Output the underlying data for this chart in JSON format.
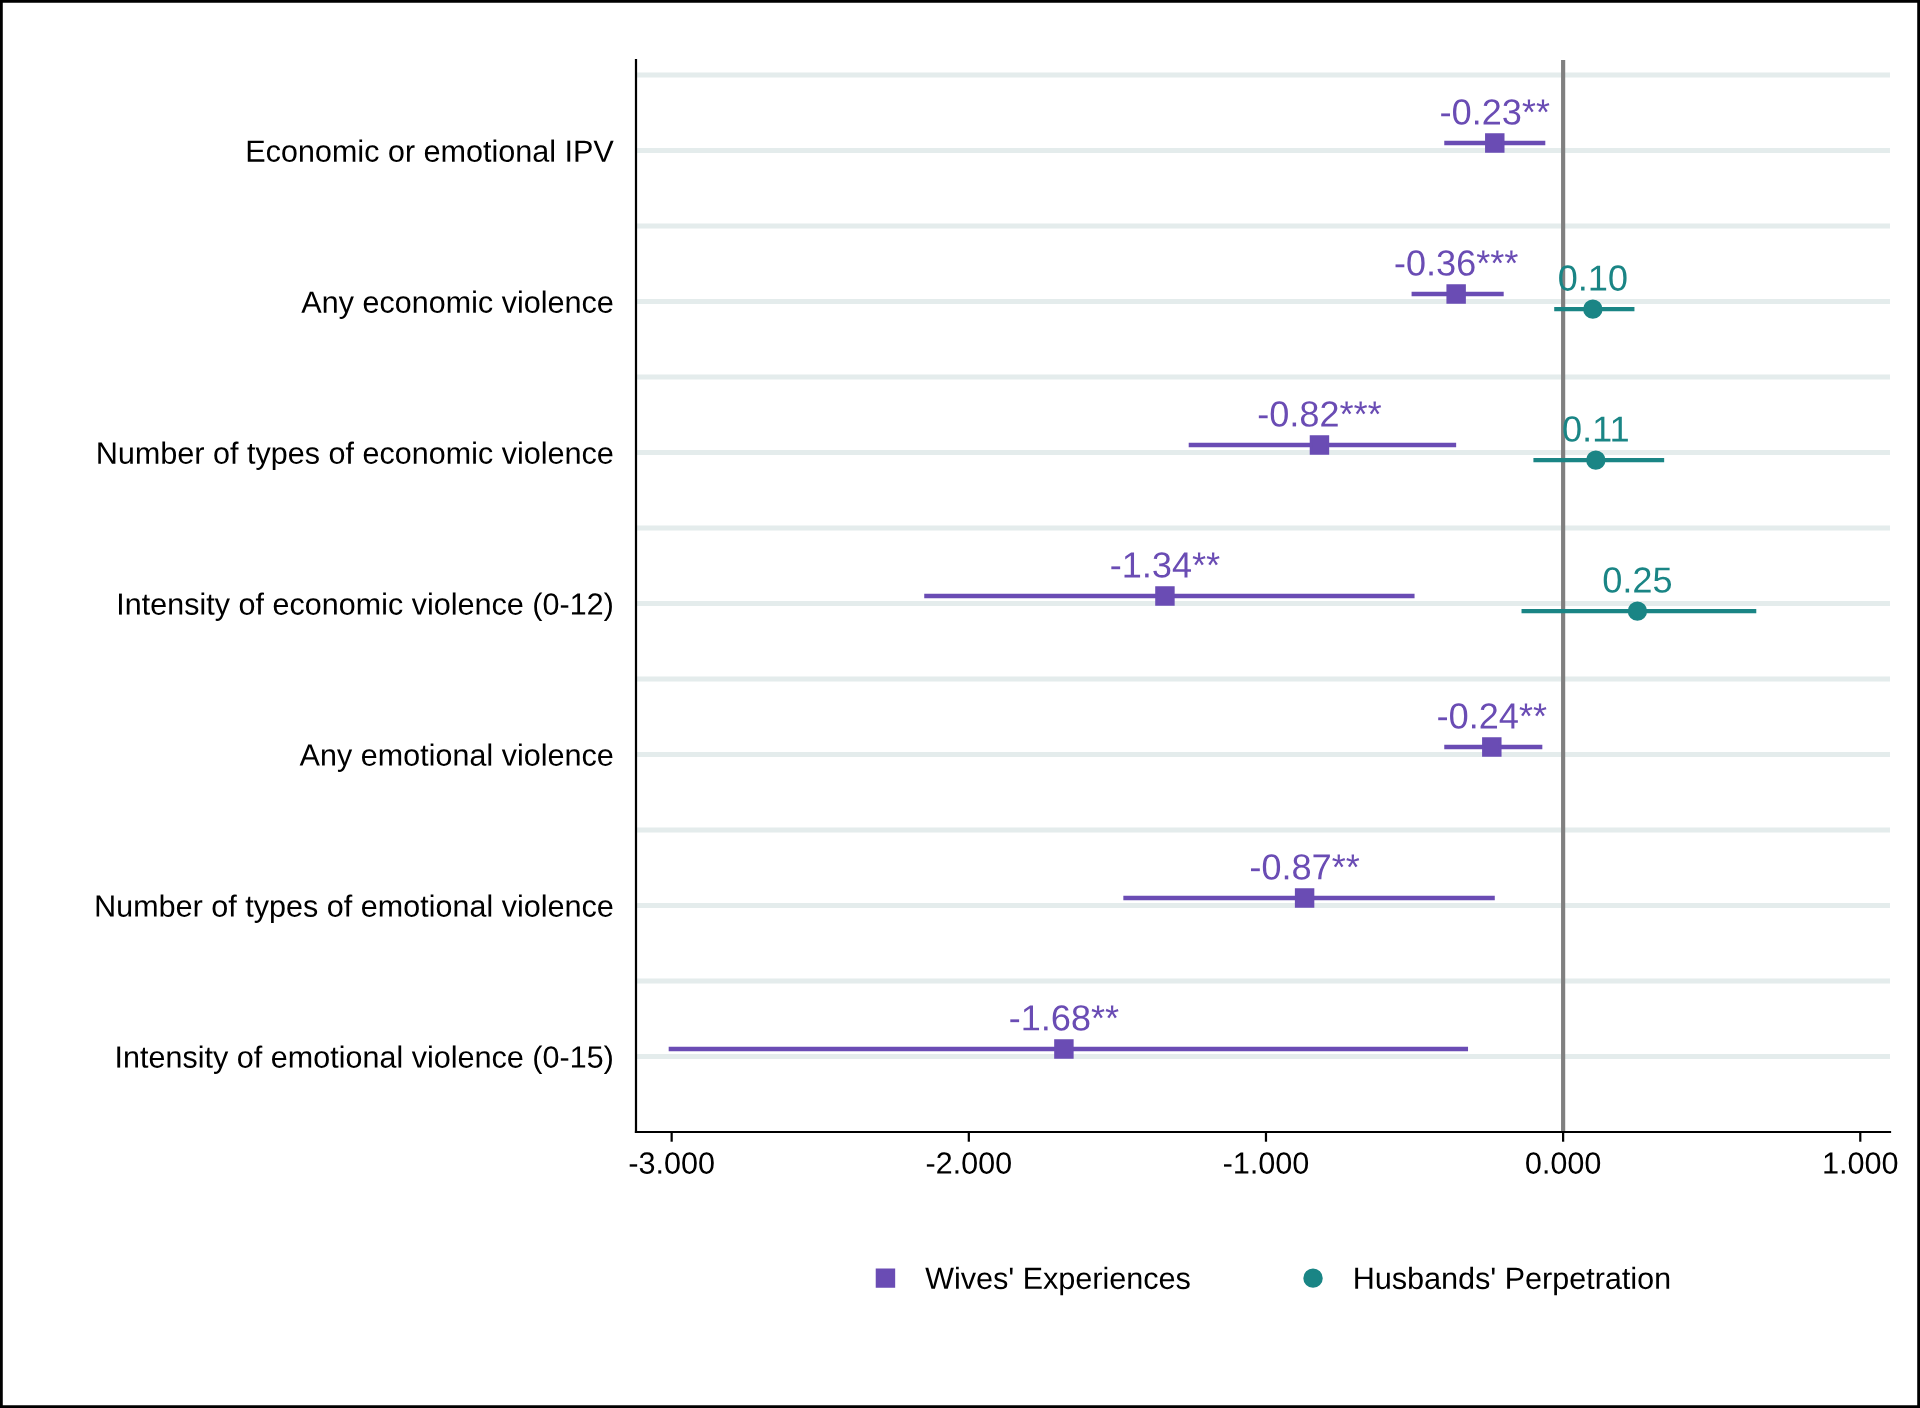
{
  "chart_data": {
    "type": "scatter",
    "orientation": "horizontal",
    "categories": [
      "Economic or emotional IPV",
      "Any economic violence",
      "Number of types of economic violence",
      "Intensity of economic violence (0-12)",
      "Any emotional violence",
      "Number of types of emotional violence",
      "Intensity of emotional violence (0-15)"
    ],
    "series": [
      {
        "name": "Wives' Experiences",
        "color": "#6a4cb4",
        "marker": "square",
        "values": [
          -0.23,
          -0.36,
          -0.82,
          -1.34,
          -0.24,
          -0.87,
          -1.68
        ],
        "errors": [
          [
            -0.4,
            -0.06
          ],
          [
            -0.51,
            -0.2
          ],
          [
            -1.26,
            -0.36
          ],
          [
            -2.15,
            -0.5
          ],
          [
            -0.4,
            -0.07
          ],
          [
            -1.48,
            -0.23
          ],
          [
            -3.01,
            -0.32
          ]
        ],
        "value_labels": [
          "-0.23**",
          "-0.36***",
          "-0.82***",
          "-1.34**",
          "-0.24**",
          "-0.87**",
          "-1.68**"
        ]
      },
      {
        "name": "Husbands' Perpetration",
        "color": "#1a8585",
        "marker": "circle",
        "values": [
          null,
          0.1,
          0.11,
          0.25,
          null,
          null,
          null
        ],
        "errors": [
          null,
          [
            -0.03,
            0.24
          ],
          [
            -0.1,
            0.34
          ],
          [
            -0.14,
            0.65
          ],
          null,
          null,
          null
        ],
        "value_labels": [
          null,
          "0.10",
          "0.11",
          "0.25",
          null,
          null,
          null
        ]
      }
    ],
    "xlim": [
      -3.12,
      1.1
    ],
    "xticks": [
      {
        "value": -3,
        "label": "-3.000"
      },
      {
        "value": -2,
        "label": "-2.000"
      },
      {
        "value": -1,
        "label": "-1.000"
      },
      {
        "value": 0,
        "label": "0.000"
      },
      {
        "value": 1,
        "label": "1.000"
      }
    ],
    "ref_lines": [
      {
        "axis": "x",
        "value": 0,
        "label": null,
        "color": "#808080"
      }
    ],
    "grid": "y",
    "legend": "bottom"
  }
}
